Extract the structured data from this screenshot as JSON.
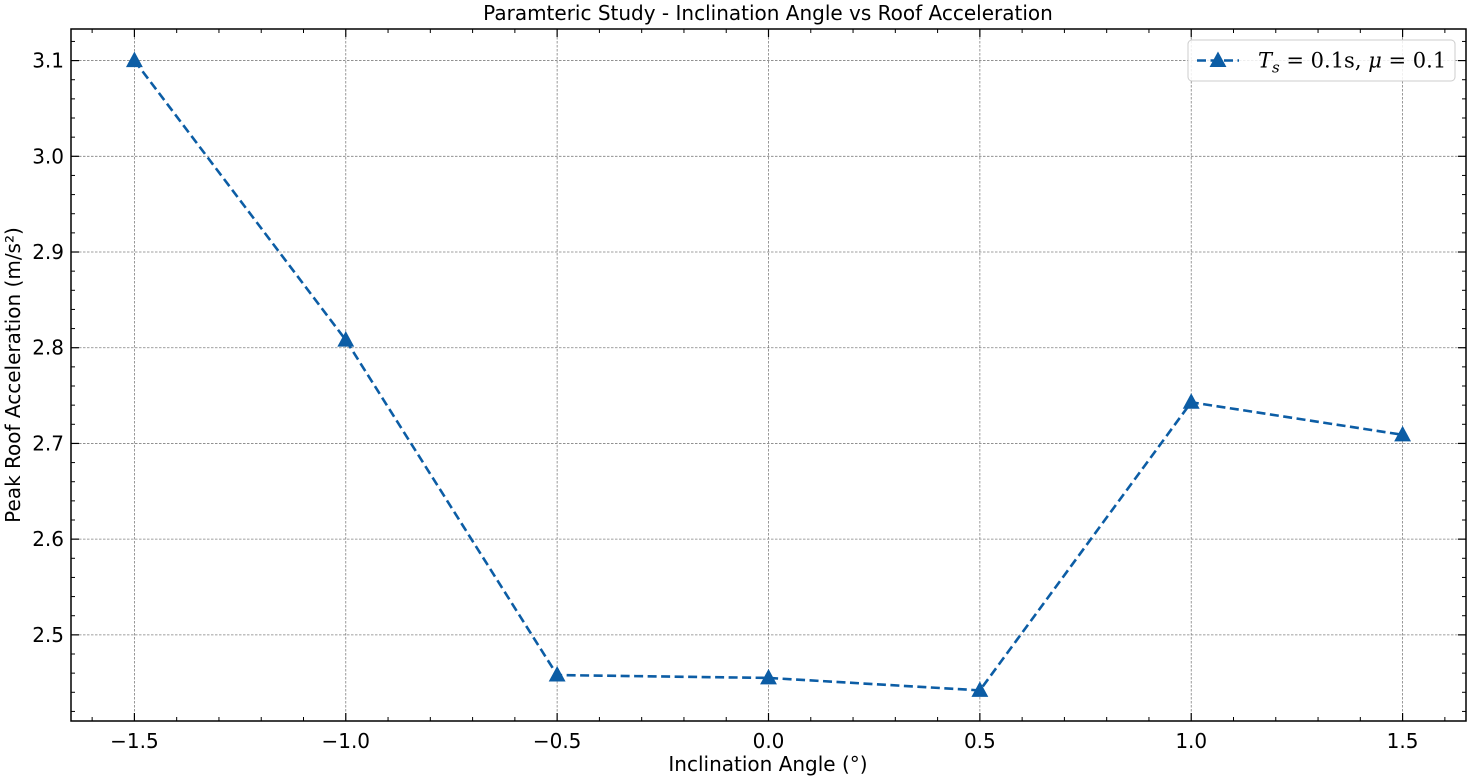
{
  "chart_data": {
    "type": "line",
    "title": "Paramteric Study - Inclination Angle vs Roof Acceleration",
    "xlabel": "Inclination Angle (°)",
    "ylabel": "Peak Roof Acceleration (m/s²)",
    "xlim": [
      -1.65,
      1.65
    ],
    "ylim": [
      2.41,
      3.133
    ],
    "xticks": [
      -1.5,
      -1.0,
      -0.5,
      0.0,
      0.5,
      1.0,
      1.5
    ],
    "xtick_labels": [
      "−1.5",
      "−1.0",
      "−0.5",
      "0.0",
      "0.5",
      "1.0",
      "1.5"
    ],
    "yticks": [
      2.5,
      2.6,
      2.7,
      2.8,
      2.9,
      3.0,
      3.1
    ],
    "ytick_labels": [
      "2.5",
      "2.6",
      "2.7",
      "2.8",
      "2.9",
      "3.0",
      "3.1"
    ],
    "grid": true,
    "legend_position": "top-right",
    "series": [
      {
        "name": "T_s = 0.1s, μ = 0.1",
        "legend_parts": {
          "t": "T",
          "sub": "s",
          "eq1": " = 0.1s, ",
          "mu": "μ",
          "eq2": " = 0.1"
        },
        "color": "#0c5da5",
        "linestyle": "dashed",
        "marker": "triangle-up",
        "x": [
          -1.5,
          -1.0,
          -0.5,
          0.0,
          0.5,
          1.0,
          1.5
        ],
        "y": [
          3.1,
          2.808,
          2.458,
          2.455,
          2.442,
          2.743,
          2.709
        ]
      }
    ]
  }
}
